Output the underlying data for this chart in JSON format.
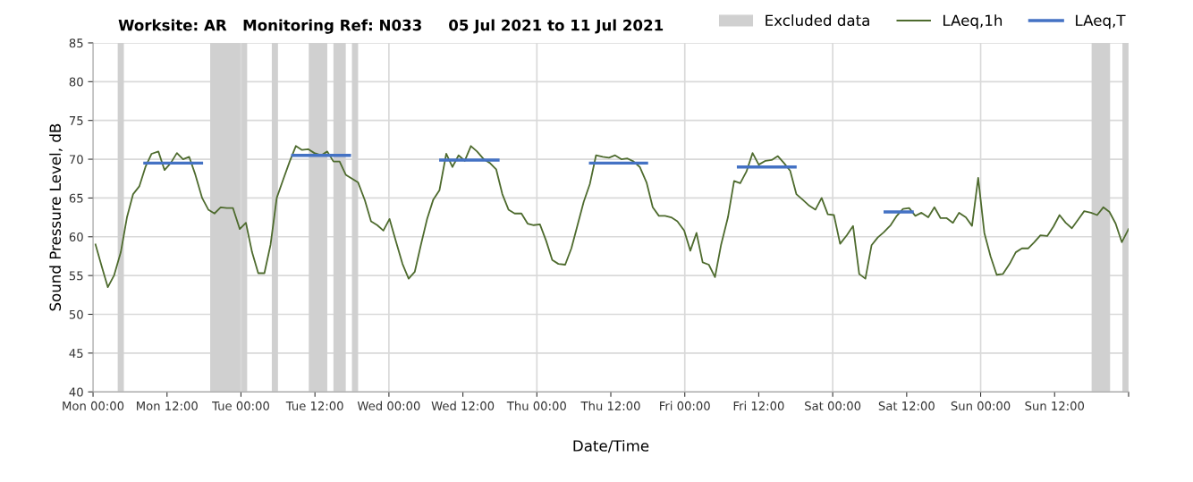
{
  "chart_data": {
    "type": "line",
    "title": "Worksite: AR   Monitoring Ref: N033     05 Jul 2021 to 11 Jul 2021",
    "xlabel": "Date/Time",
    "ylabel": "Sound Pressure Level, dB",
    "xlim": [
      "2021-07-05T00:00",
      "2021-07-12T00:00"
    ],
    "ylim": [
      40,
      85
    ],
    "xticks": [
      {
        "value": "2021-07-05T00:00",
        "label": "Mon 00:00"
      },
      {
        "value": "2021-07-05T12:00",
        "label": "Mon 12:00"
      },
      {
        "value": "2021-07-06T00:00",
        "label": "Tue 00:00"
      },
      {
        "value": "2021-07-06T12:00",
        "label": "Tue 12:00"
      },
      {
        "value": "2021-07-07T00:00",
        "label": "Wed 00:00"
      },
      {
        "value": "2021-07-07T12:00",
        "label": "Wed 12:00"
      },
      {
        "value": "2021-07-08T00:00",
        "label": "Thu 00:00"
      },
      {
        "value": "2021-07-08T12:00",
        "label": "Thu 12:00"
      },
      {
        "value": "2021-07-09T00:00",
        "label": "Fri 00:00"
      },
      {
        "value": "2021-07-09T12:00",
        "label": "Fri 12:00"
      },
      {
        "value": "2021-07-10T00:00",
        "label": "Sat 00:00"
      },
      {
        "value": "2021-07-10T12:00",
        "label": "Sat 12:00"
      },
      {
        "value": "2021-07-11T00:00",
        "label": "Sun 00:00"
      },
      {
        "value": "2021-07-11T12:00",
        "label": "Sun 12:00"
      },
      {
        "value": "2021-07-12T00:00",
        "label": null
      }
    ],
    "yticks": [
      40,
      45,
      50,
      55,
      60,
      65,
      70,
      75,
      80,
      85
    ],
    "grid": "y",
    "legend": "top right",
    "marker": "none",
    "line_style": "solid",
    "series": [
      {
        "name": "LAeq,1h",
        "color": "#4e6b2e",
        "x": [
          "2021-07-05T00:24",
          "2021-07-05T01:24",
          "2021-07-05T02:24",
          "2021-07-05T03:24",
          "2021-07-05T04:30",
          "2021-07-05T05:30",
          "2021-07-05T06:30",
          "2021-07-05T07:30",
          "2021-07-05T08:30",
          "2021-07-05T09:30",
          "2021-07-05T10:36",
          "2021-07-05T11:36",
          "2021-07-05T12:36",
          "2021-07-05T13:36",
          "2021-07-05T14:36",
          "2021-07-05T15:36",
          "2021-07-05T16:36",
          "2021-07-05T17:42",
          "2021-07-05T18:42",
          "2021-07-05T19:42",
          "2021-07-05T20:42",
          "2021-07-05T21:42",
          "2021-07-05T22:42",
          "2021-07-05T23:48",
          "2021-07-06T00:48",
          "2021-07-06T01:48",
          "2021-07-06T02:48",
          "2021-07-06T03:48",
          "2021-07-06T04:48",
          "2021-07-06T05:48",
          "2021-07-06T06:54",
          "2021-07-06T07:54",
          "2021-07-06T08:54",
          "2021-07-06T09:54",
          "2021-07-06T10:54",
          "2021-07-06T11:54",
          "2021-07-06T13:00",
          "2021-07-06T14:00",
          "2021-07-06T15:00",
          "2021-07-06T16:00",
          "2021-07-06T17:00",
          "2021-07-06T18:00",
          "2021-07-06T19:00",
          "2021-07-06T20:06",
          "2021-07-06T21:06",
          "2021-07-06T22:06",
          "2021-07-06T23:06",
          "2021-07-07T00:06",
          "2021-07-07T01:06",
          "2021-07-07T02:12",
          "2021-07-07T03:12",
          "2021-07-07T04:12",
          "2021-07-07T05:12",
          "2021-07-07T06:12",
          "2021-07-07T07:12",
          "2021-07-07T08:12",
          "2021-07-07T09:18",
          "2021-07-07T10:18",
          "2021-07-07T11:18",
          "2021-07-07T12:18",
          "2021-07-07T13:18",
          "2021-07-07T14:18",
          "2021-07-07T15:24",
          "2021-07-07T16:24",
          "2021-07-07T17:24",
          "2021-07-07T18:24",
          "2021-07-07T19:24",
          "2021-07-07T20:24",
          "2021-07-07T21:30",
          "2021-07-07T22:30",
          "2021-07-07T23:30",
          "2021-07-08T00:30",
          "2021-07-08T01:30",
          "2021-07-08T02:30",
          "2021-07-08T03:30",
          "2021-07-08T04:36",
          "2021-07-08T05:36",
          "2021-07-08T06:36",
          "2021-07-08T07:36",
          "2021-07-08T08:36",
          "2021-07-08T09:36",
          "2021-07-08T10:42",
          "2021-07-08T11:42",
          "2021-07-08T12:42",
          "2021-07-08T13:42",
          "2021-07-08T14:42",
          "2021-07-08T15:42",
          "2021-07-08T16:42",
          "2021-07-08T17:48",
          "2021-07-08T18:48",
          "2021-07-08T19:48",
          "2021-07-08T20:48",
          "2021-07-08T21:48",
          "2021-07-08T22:48",
          "2021-07-08T23:54",
          "2021-07-09T00:54",
          "2021-07-09T01:54",
          "2021-07-09T02:54",
          "2021-07-09T03:54",
          "2021-07-09T04:54",
          "2021-07-09T05:54",
          "2021-07-09T07:00",
          "2021-07-09T08:00",
          "2021-07-09T09:00",
          "2021-07-09T10:00",
          "2021-07-09T11:00",
          "2021-07-09T12:00",
          "2021-07-09T13:06",
          "2021-07-09T14:06",
          "2021-07-09T15:06",
          "2021-07-09T16:06",
          "2021-07-09T17:06",
          "2021-07-09T18:06",
          "2021-07-09T19:06",
          "2021-07-09T20:12",
          "2021-07-09T21:12",
          "2021-07-09T22:12",
          "2021-07-09T23:12",
          "2021-07-10T00:12",
          "2021-07-10T01:12",
          "2021-07-10T02:18",
          "2021-07-10T03:18",
          "2021-07-10T04:18",
          "2021-07-10T05:18",
          "2021-07-10T06:18",
          "2021-07-10T07:18",
          "2021-07-10T08:18",
          "2021-07-10T09:24",
          "2021-07-10T10:24",
          "2021-07-10T11:24",
          "2021-07-10T12:24",
          "2021-07-10T13:24",
          "2021-07-10T14:24",
          "2021-07-10T15:30",
          "2021-07-10T16:30",
          "2021-07-10T17:30",
          "2021-07-10T18:30",
          "2021-07-10T19:30",
          "2021-07-10T20:30",
          "2021-07-10T21:36",
          "2021-07-10T22:36",
          "2021-07-10T23:36",
          "2021-07-11T00:36",
          "2021-07-11T01:36",
          "2021-07-11T02:36",
          "2021-07-11T03:36",
          "2021-07-11T04:42",
          "2021-07-11T05:42",
          "2021-07-11T06:42",
          "2021-07-11T07:42",
          "2021-07-11T08:42",
          "2021-07-11T09:42",
          "2021-07-11T10:48",
          "2021-07-11T11:48",
          "2021-07-11T12:48",
          "2021-07-11T13:48",
          "2021-07-11T14:48",
          "2021-07-11T15:48",
          "2021-07-11T16:48",
          "2021-07-11T17:54",
          "2021-07-11T18:54",
          "2021-07-11T19:54",
          "2021-07-11T20:54",
          "2021-07-11T21:54",
          "2021-07-11T22:54",
          "2021-07-12T00:00"
        ],
        "values": [
          59,
          56.2,
          53.5,
          55,
          58,
          62.5,
          65.5,
          66.5,
          69,
          70.7,
          71,
          68.6,
          69.5,
          70.8,
          70,
          70.3,
          68,
          65,
          63.5,
          63,
          63.8,
          63.7,
          63.7,
          61,
          61.8,
          58,
          55.3,
          55.3,
          59,
          65,
          67.5,
          69.7,
          71.7,
          71.2,
          71.3,
          70.8,
          70.5,
          71,
          69.7,
          69.7,
          68,
          67.5,
          67,
          64.7,
          62,
          61.5,
          60.8,
          62.3,
          59.5,
          56.5,
          54.6,
          55.5,
          59,
          62.3,
          64.8,
          66,
          70.7,
          69,
          70.5,
          69.8,
          71.7,
          71,
          70,
          69.5,
          68.7,
          65.5,
          63.5,
          63,
          63,
          61.7,
          61.5,
          61.6,
          59.5,
          57,
          56.5,
          56.4,
          58.5,
          61.5,
          64.5,
          66.8,
          70.5,
          70.3,
          70.2,
          70.5,
          70,
          70.1,
          69.7,
          69,
          67,
          63.8,
          62.7,
          62.7,
          62.5,
          62,
          60.8,
          58.2,
          60.5,
          56.7,
          56.4,
          54.8,
          59,
          62.5,
          67.2,
          66.9,
          68.4,
          70.8,
          69.3,
          69.8,
          69.9,
          70.4,
          69.5,
          68.5,
          65.5,
          64.8,
          64,
          63.5,
          65,
          62.9,
          62.8,
          59.1,
          60.2,
          61.4,
          55.2,
          54.6,
          58.9,
          59.9,
          60.6,
          61.5,
          62.7,
          63.6,
          63.7,
          62.7,
          63.1,
          62.5,
          63.8,
          62.4,
          62.4,
          61.8,
          63.1,
          62.5,
          61.4,
          67.6,
          60.5,
          57.5,
          55.1,
          55.2,
          56.5,
          58,
          58.5,
          58.5,
          59.3,
          60.2,
          60.1,
          61.3,
          62.8,
          61.8,
          61.1,
          62.2,
          63.3,
          63.1,
          62.8,
          63.8,
          63.2,
          61.7,
          59.3,
          61
        ]
      },
      {
        "name": "LAeq,T",
        "color": "#4472c4",
        "x": [
          "2021-07-05T08:24",
          "2021-07-05T17:36",
          "2021-07-06T01:00",
          "2021-07-06T08:24",
          "2021-07-06T17:36",
          "2021-07-07T01:00",
          "2021-07-07T08:24",
          "2021-07-07T17:42",
          "2021-07-08T01:00",
          "2021-07-08T08:42",
          "2021-07-08T17:48",
          "2021-07-09T01:00",
          "2021-07-09T08:42",
          "2021-07-09T17:54",
          "2021-07-10T01:00",
          "2021-07-10T08:30",
          "2021-07-10T12:54"
        ],
        "values": [
          69.5,
          69.5,
          null,
          70.5,
          70.5,
          null,
          69.9,
          69.9,
          null,
          69.5,
          69.5,
          null,
          69,
          69,
          null,
          63.2,
          63.2
        ]
      }
    ],
    "bands": [
      {
        "axis": "x",
        "from": "2021-07-05T04:00",
        "to": "2021-07-05T05:00",
        "label": "Excluded data",
        "color": "#d0d0d0"
      },
      {
        "axis": "x",
        "from": "2021-07-05T19:00",
        "to": "2021-07-06T01:00",
        "color": "#d0d0d0"
      },
      {
        "axis": "x",
        "from": "2021-07-06T05:00",
        "to": "2021-07-06T06:00",
        "color": "#d0d0d0"
      },
      {
        "axis": "x",
        "from": "2021-07-06T11:00",
        "to": "2021-07-06T14:00",
        "color": "#d0d0d0"
      },
      {
        "axis": "x",
        "from": "2021-07-06T15:00",
        "to": "2021-07-06T17:00",
        "color": "#d0d0d0"
      },
      {
        "axis": "x",
        "from": "2021-07-06T18:00",
        "to": "2021-07-06T19:00",
        "color": "#d0d0d0"
      },
      {
        "axis": "x",
        "from": "2021-07-11T18:00",
        "to": "2021-07-11T21:00",
        "color": "#d0d0d0"
      },
      {
        "axis": "x",
        "from": "2021-07-11T23:00",
        "to": "2021-07-12T00:00",
        "color": "#d0d0d0"
      }
    ],
    "ref_lines": [
      {
        "axis": "x",
        "value": "2021-07-06T00:00",
        "color": "#d9d9d9"
      },
      {
        "axis": "x",
        "value": "2021-07-07T00:00",
        "color": "#d9d9d9"
      },
      {
        "axis": "x",
        "value": "2021-07-08T00:00",
        "color": "#d9d9d9"
      },
      {
        "axis": "x",
        "value": "2021-07-09T00:00",
        "color": "#d9d9d9"
      },
      {
        "axis": "x",
        "value": "2021-07-10T00:00",
        "color": "#d9d9d9"
      },
      {
        "axis": "x",
        "value": "2021-07-11T00:00",
        "color": "#d9d9d9"
      }
    ]
  }
}
